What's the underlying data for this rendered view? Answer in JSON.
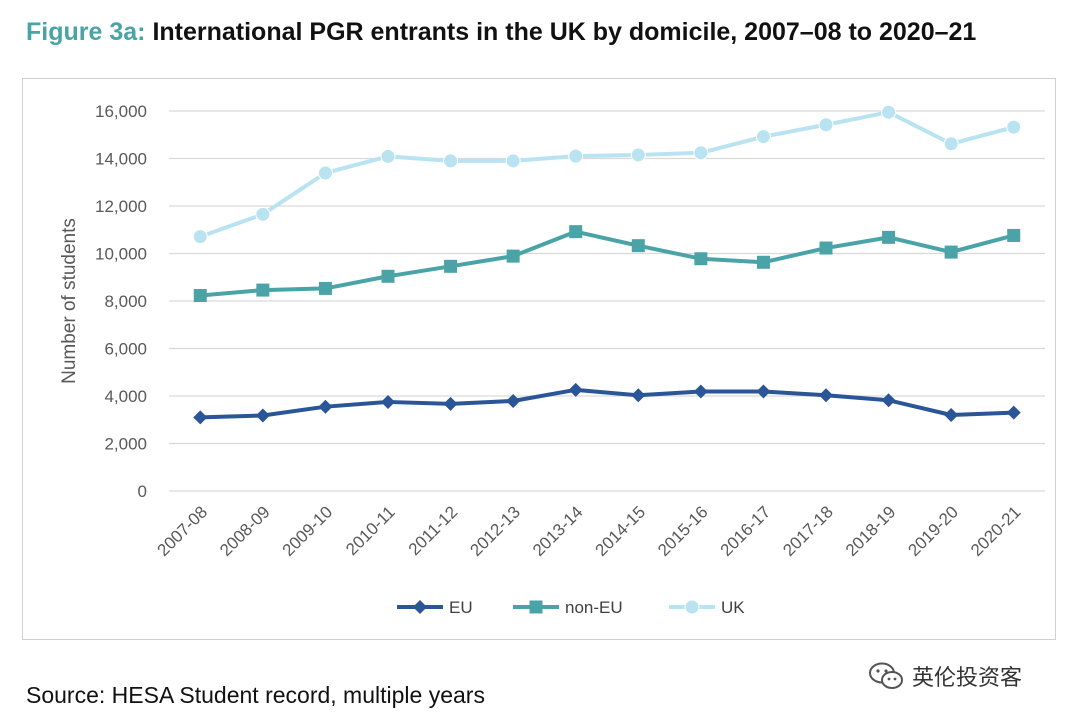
{
  "figure": {
    "label": "Figure 3a:",
    "title": "International PGR entrants in the UK by domicile, 2007–08 to 2020–21"
  },
  "source": "Source: HESA Student record, multiple years",
  "watermark": {
    "text": "英伦投资客",
    "icon": "wechat-icon"
  },
  "chart_data": {
    "type": "line",
    "ylabel": "Number of students",
    "ylim": [
      0,
      16000
    ],
    "yticks": [
      0,
      2000,
      4000,
      6000,
      8000,
      10000,
      12000,
      14000,
      16000
    ],
    "ytick_labels": [
      "0",
      "2,000",
      "4,000",
      "6,000",
      "8,000",
      "10,000",
      "12,000",
      "14,000",
      "16,000"
    ],
    "grid": true,
    "legend_position": "bottom",
    "categories": [
      "2007-08",
      "2008-09",
      "2009-10",
      "2010-11",
      "2011-12",
      "2012-13",
      "2013-14",
      "2014-15",
      "2015-16",
      "2016-17",
      "2017-18",
      "2018-19",
      "2019-20",
      "2020-21"
    ],
    "series": [
      {
        "name": "EU",
        "color": "#2a5597",
        "marker": "diamond",
        "values": [
          3100,
          3180,
          3550,
          3750,
          3670,
          3790,
          4260,
          4030,
          4190,
          4190,
          4030,
          3820,
          3200,
          3300
        ]
      },
      {
        "name": "non-EU",
        "color": "#4aa3a6",
        "marker": "square",
        "values": [
          8230,
          8460,
          8530,
          9040,
          9460,
          9890,
          10920,
          10330,
          9780,
          9630,
          10230,
          10680,
          10060,
          10760
        ]
      },
      {
        "name": "UK",
        "color": "#b9e3f0",
        "marker": "circle",
        "values": [
          10710,
          11650,
          13390,
          14090,
          13900,
          13900,
          14100,
          14150,
          14240,
          14920,
          15420,
          15950,
          14620,
          15320
        ]
      }
    ]
  }
}
